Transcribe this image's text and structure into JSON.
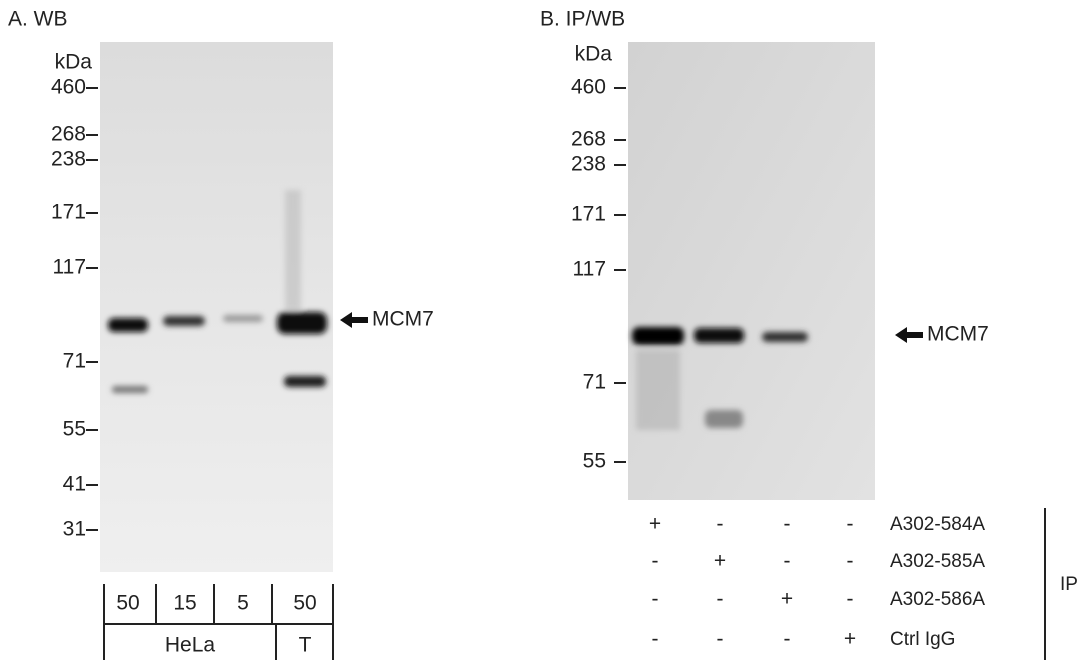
{
  "panels": [
    {
      "label": "A. WB",
      "unit": "kDa",
      "markers": [
        "460",
        "268",
        "238",
        "171",
        "117",
        "71",
        "55",
        "41",
        "31"
      ],
      "target": "MCM7",
      "lanes": [
        "50",
        "15",
        "5",
        "50"
      ],
      "groups": [
        "HeLa",
        "T"
      ]
    },
    {
      "label": "B. IP/WB",
      "unit": "kDa",
      "markers": [
        "460",
        "268",
        "238",
        "171",
        "117",
        "71",
        "55"
      ],
      "target": "MCM7",
      "ip_rows": [
        {
          "label": "A302-584A",
          "marks": [
            "+",
            "-",
            "-",
            "-"
          ]
        },
        {
          "label": "A302-585A",
          "marks": [
            "-",
            "+",
            "-",
            "-"
          ]
        },
        {
          "label": "A302-586A",
          "marks": [
            "-",
            "-",
            "+",
            "-"
          ]
        },
        {
          "label": "Ctrl IgG",
          "marks": [
            "-",
            "-",
            "-",
            "+"
          ]
        }
      ],
      "ip_label": "IP"
    }
  ]
}
